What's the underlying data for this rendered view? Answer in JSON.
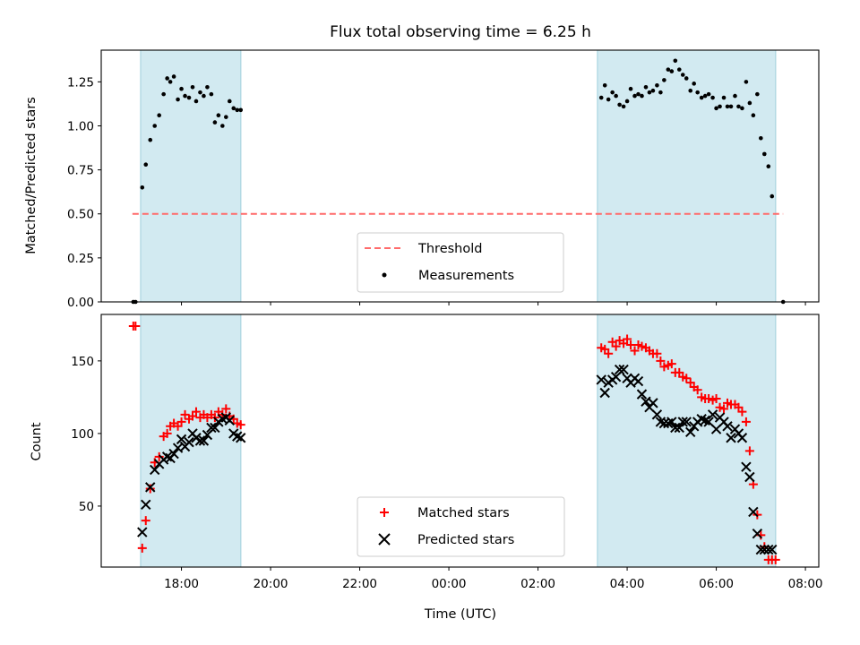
{
  "chart_data": [
    {
      "type": "scatter",
      "title": "Flux total observing time = 6.25 h",
      "xlabel": "",
      "ylabel": "Matched/Predicted stars",
      "ylim": [
        0,
        1.43
      ],
      "yticks": [
        0.0,
        0.25,
        0.5,
        0.75,
        1.0,
        1.25
      ],
      "ytick_labels": [
        "0.00",
        "0.25",
        "0.50",
        "0.75",
        "1.00",
        "1.25"
      ],
      "x_unit": "hours since 16:00 UTC",
      "xlim": [
        0.2,
        16.3
      ],
      "observing_windows": [
        [
          1.083,
          3.333
        ],
        [
          11.333,
          15.333
        ]
      ],
      "window_color": "#add8e6",
      "threshold": {
        "name": "Threshold",
        "value": 0.5,
        "x_range": [
          0.9,
          15.5
        ],
        "color": "#ff6b6b",
        "style": "dashed"
      },
      "series": [
        {
          "name": "Measurements",
          "color": "#000000",
          "marker": "dot",
          "x": [
            0.92,
            0.97,
            1.12,
            1.2,
            1.3,
            1.4,
            1.5,
            1.6,
            1.68,
            1.75,
            1.83,
            1.92,
            2.0,
            2.08,
            2.17,
            2.25,
            2.33,
            2.42,
            2.5,
            2.58,
            2.67,
            2.75,
            2.83,
            2.92,
            3.0,
            3.08,
            3.17,
            3.25,
            3.33,
            11.42,
            11.5,
            11.58,
            11.67,
            11.75,
            11.83,
            11.92,
            12.0,
            12.08,
            12.17,
            12.25,
            12.33,
            12.42,
            12.5,
            12.58,
            12.67,
            12.75,
            12.83,
            12.92,
            13.0,
            13.08,
            13.17,
            13.25,
            13.33,
            13.42,
            13.5,
            13.58,
            13.67,
            13.75,
            13.83,
            13.92,
            14.0,
            14.08,
            14.17,
            14.25,
            14.33,
            14.42,
            14.5,
            14.58,
            14.67,
            14.75,
            14.83,
            14.92,
            15.0,
            15.08,
            15.17,
            15.25,
            15.5
          ],
          "y": [
            0.0,
            0.0,
            0.65,
            0.78,
            0.92,
            1.0,
            1.06,
            1.18,
            1.27,
            1.25,
            1.28,
            1.15,
            1.21,
            1.17,
            1.16,
            1.22,
            1.14,
            1.19,
            1.17,
            1.22,
            1.18,
            1.02,
            1.06,
            1.0,
            1.05,
            1.14,
            1.1,
            1.09,
            1.09,
            1.16,
            1.23,
            1.15,
            1.19,
            1.17,
            1.12,
            1.11,
            1.14,
            1.21,
            1.17,
            1.18,
            1.17,
            1.22,
            1.19,
            1.2,
            1.23,
            1.19,
            1.26,
            1.32,
            1.31,
            1.37,
            1.32,
            1.29,
            1.27,
            1.2,
            1.24,
            1.19,
            1.16,
            1.17,
            1.18,
            1.16,
            1.1,
            1.11,
            1.16,
            1.11,
            1.11,
            1.17,
            1.11,
            1.1,
            1.25,
            1.13,
            1.06,
            1.18,
            0.93,
            0.84,
            0.77,
            0.6,
            0.0
          ]
        }
      ],
      "legend": {
        "position": "lower center",
        "entries": [
          "Threshold",
          "Measurements"
        ]
      }
    },
    {
      "type": "scatter",
      "title": "",
      "xlabel": "Time (UTC)",
      "ylabel": "Count",
      "ylim": [
        8,
        182
      ],
      "yticks": [
        50,
        100,
        150
      ],
      "ytick_labels": [
        "50",
        "100",
        "150"
      ],
      "x_unit": "hours since 16:00 UTC",
      "xlim": [
        0.2,
        16.3
      ],
      "xticks": [
        2,
        4,
        6,
        8,
        10,
        12,
        14,
        16
      ],
      "xtick_labels": [
        "18:00",
        "20:00",
        "22:00",
        "00:00",
        "02:00",
        "04:00",
        "06:00",
        "08:00"
      ],
      "observing_windows": [
        [
          1.083,
          3.333
        ],
        [
          11.333,
          15.333
        ]
      ],
      "window_color": "#add8e6",
      "series": [
        {
          "name": "Matched stars",
          "color": "#ff0000",
          "marker": "plus",
          "x": [
            0.92,
            0.97,
            1.12,
            1.2,
            1.3,
            1.4,
            1.5,
            1.6,
            1.68,
            1.75,
            1.83,
            1.92,
            2.0,
            2.08,
            2.17,
            2.25,
            2.33,
            2.42,
            2.5,
            2.58,
            2.67,
            2.75,
            2.83,
            2.92,
            3.0,
            3.08,
            3.17,
            3.25,
            3.33,
            11.42,
            11.5,
            11.58,
            11.67,
            11.75,
            11.83,
            11.92,
            12.0,
            12.08,
            12.17,
            12.25,
            12.33,
            12.42,
            12.5,
            12.58,
            12.67,
            12.75,
            12.83,
            12.92,
            13.0,
            13.08,
            13.17,
            13.25,
            13.33,
            13.42,
            13.5,
            13.58,
            13.67,
            13.75,
            13.83,
            13.92,
            14.0,
            14.08,
            14.17,
            14.25,
            14.33,
            14.42,
            14.5,
            14.58,
            14.67,
            14.75,
            14.83,
            14.92,
            15.0,
            15.08,
            15.17,
            15.25,
            15.33
          ],
          "y": [
            174,
            174,
            21,
            40,
            62,
            80,
            84,
            98,
            100,
            105,
            107,
            105,
            108,
            113,
            110,
            112,
            115,
            111,
            113,
            111,
            113,
            111,
            115,
            113,
            117,
            112,
            110,
            107,
            106,
            159,
            158,
            155,
            163,
            160,
            164,
            162,
            165,
            161,
            157,
            161,
            160,
            159,
            157,
            155,
            155,
            150,
            146,
            147,
            148,
            142,
            142,
            139,
            138,
            135,
            132,
            130,
            125,
            124,
            124,
            123,
            124,
            118,
            117,
            121,
            120,
            120,
            118,
            115,
            108,
            88,
            65,
            44,
            30,
            22,
            13,
            13,
            13
          ]
        },
        {
          "name": "Predicted stars",
          "color": "#000000",
          "marker": "x",
          "x": [
            1.12,
            1.2,
            1.3,
            1.4,
            1.5,
            1.6,
            1.68,
            1.75,
            1.83,
            1.92,
            2.0,
            2.08,
            2.17,
            2.25,
            2.33,
            2.42,
            2.5,
            2.58,
            2.67,
            2.75,
            2.83,
            2.92,
            3.0,
            3.08,
            3.17,
            3.25,
            3.33,
            11.42,
            11.5,
            11.58,
            11.67,
            11.75,
            11.83,
            11.92,
            12.0,
            12.08,
            12.17,
            12.25,
            12.33,
            12.42,
            12.5,
            12.58,
            12.67,
            12.75,
            12.83,
            12.92,
            13.0,
            13.08,
            13.17,
            13.25,
            13.33,
            13.42,
            13.5,
            13.58,
            13.67,
            13.75,
            13.83,
            13.92,
            14.0,
            14.08,
            14.17,
            14.25,
            14.33,
            14.42,
            14.5,
            14.58,
            14.67,
            14.75,
            14.83,
            14.92,
            15.0,
            15.08,
            15.17,
            15.25
          ],
          "y": [
            32,
            51,
            63,
            75,
            79,
            82,
            84,
            83,
            86,
            90,
            96,
            91,
            94,
            100,
            97,
            95,
            95,
            99,
            104,
            104,
            108,
            110,
            111,
            109,
            100,
            98,
            97,
            137,
            128,
            135,
            137,
            139,
            144,
            144,
            138,
            135,
            138,
            136,
            127,
            122,
            118,
            121,
            113,
            108,
            107,
            107,
            108,
            104,
            104,
            108,
            108,
            101,
            105,
            108,
            110,
            109,
            108,
            113,
            103,
            111,
            108,
            105,
            97,
            103,
            100,
            97,
            77,
            70,
            46,
            31,
            20,
            20,
            20,
            20
          ]
        }
      ],
      "legend": {
        "position": "lower center",
        "entries": [
          "Matched stars",
          "Predicted stars"
        ]
      }
    }
  ]
}
